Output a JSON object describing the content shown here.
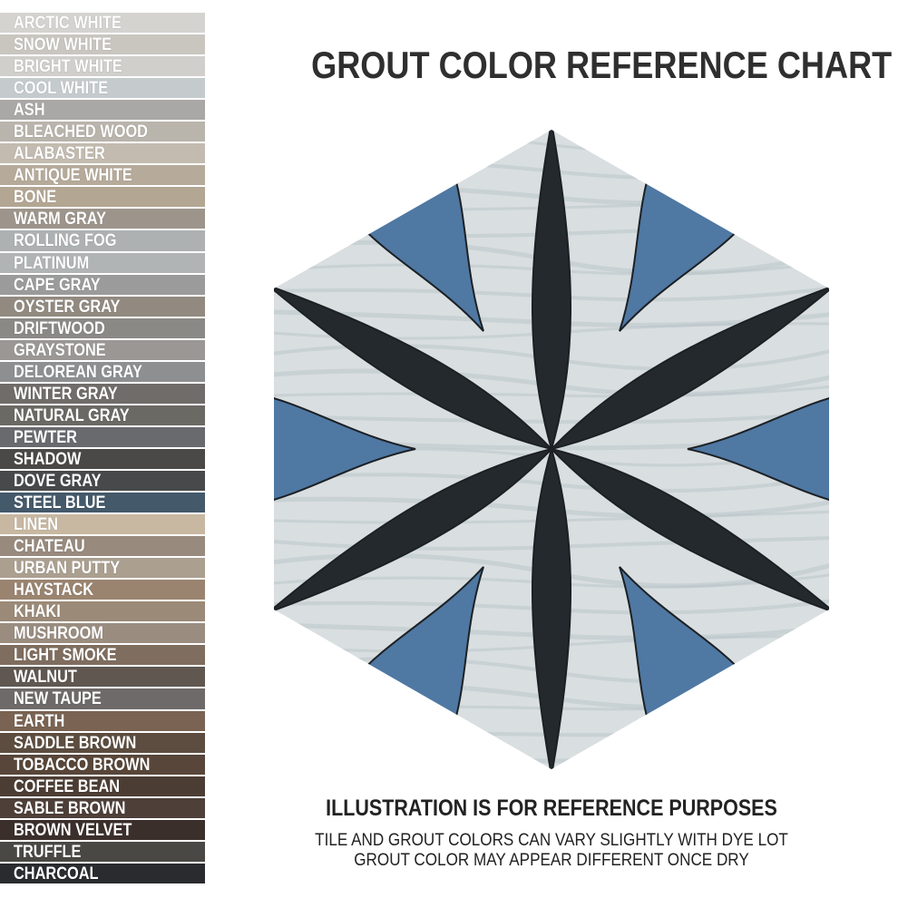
{
  "title": "GROUT COLOR REFERENCE CHART",
  "notes": {
    "heading": "ILLUSTRATION IS FOR REFERENCE PURPOSES",
    "line1": "TILE AND GROUT COLORS CAN VARY SLIGHTLY WITH DYE LOT",
    "line2": "GROUT COLOR MAY APPEAR DIFFERENT ONCE DRY"
  },
  "tile_colors": {
    "background": "#d9dee0",
    "petal": "#24292e",
    "accent": "#4f78a3"
  },
  "grout_colors": [
    {
      "name": "ARCTIC WHITE",
      "color": "#d4d3d0"
    },
    {
      "name": "SNOW WHITE",
      "color": "#c9c6c0"
    },
    {
      "name": "BRIGHT WHITE",
      "color": "#d0cfcc"
    },
    {
      "name": "COOL WHITE",
      "color": "#c5cbcd"
    },
    {
      "name": "ASH",
      "color": "#a9a8a6"
    },
    {
      "name": "BLEACHED WOOD",
      "color": "#b9b4ac"
    },
    {
      "name": "ALABASTER",
      "color": "#c3bbb0"
    },
    {
      "name": "ANTIQUE WHITE",
      "color": "#b6aa9a"
    },
    {
      "name": "BONE",
      "color": "#b3a693"
    },
    {
      "name": "WARM GRAY",
      "color": "#9d958c"
    },
    {
      "name": "ROLLING FOG",
      "color": "#adb1b2"
    },
    {
      "name": "PLATINUM",
      "color": "#b1b4b5"
    },
    {
      "name": "CAPE GRAY",
      "color": "#9a9b9a"
    },
    {
      "name": "OYSTER GRAY",
      "color": "#928a80"
    },
    {
      "name": "DRIFTWOOD",
      "color": "#8b8985"
    },
    {
      "name": "GRAYSTONE",
      "color": "#9a9794"
    },
    {
      "name": "DELOREAN GRAY",
      "color": "#8e8f91"
    },
    {
      "name": "WINTER GRAY",
      "color": "#6f6c69"
    },
    {
      "name": "NATURAL GRAY",
      "color": "#6b6964"
    },
    {
      "name": "PEWTER",
      "color": "#696a6e"
    },
    {
      "name": "SHADOW",
      "color": "#4a4947"
    },
    {
      "name": "DOVE GRAY",
      "color": "#47494b"
    },
    {
      "name": "STEEL BLUE",
      "color": "#44596a"
    },
    {
      "name": "LINEN",
      "color": "#c8b8a2"
    },
    {
      "name": "CHATEAU",
      "color": "#988a7d"
    },
    {
      "name": "URBAN PUTTY",
      "color": "#ab9f90"
    },
    {
      "name": "HAYSTACK",
      "color": "#9a8470"
    },
    {
      "name": "KHAKI",
      "color": "#9b8a78"
    },
    {
      "name": "MUSHROOM",
      "color": "#9a8d80"
    },
    {
      "name": "LIGHT SMOKE",
      "color": "#7f6d5f"
    },
    {
      "name": "WALNUT",
      "color": "#605751"
    },
    {
      "name": "NEW TAUPE",
      "color": "#6f6a6a"
    },
    {
      "name": "EARTH",
      "color": "#7a6352"
    },
    {
      "name": "SADDLE BROWN",
      "color": "#5c4d40"
    },
    {
      "name": "TOBACCO BROWN",
      "color": "#574639"
    },
    {
      "name": "COFFEE BEAN",
      "color": "#4c3d34"
    },
    {
      "name": "SABLE BROWN",
      "color": "#4e3f39"
    },
    {
      "name": "BROWN VELVET",
      "color": "#3b2f2c"
    },
    {
      "name": "TRUFFLE",
      "color": "#4a4844"
    },
    {
      "name": "CHARCOAL",
      "color": "#2a2b2e"
    }
  ]
}
